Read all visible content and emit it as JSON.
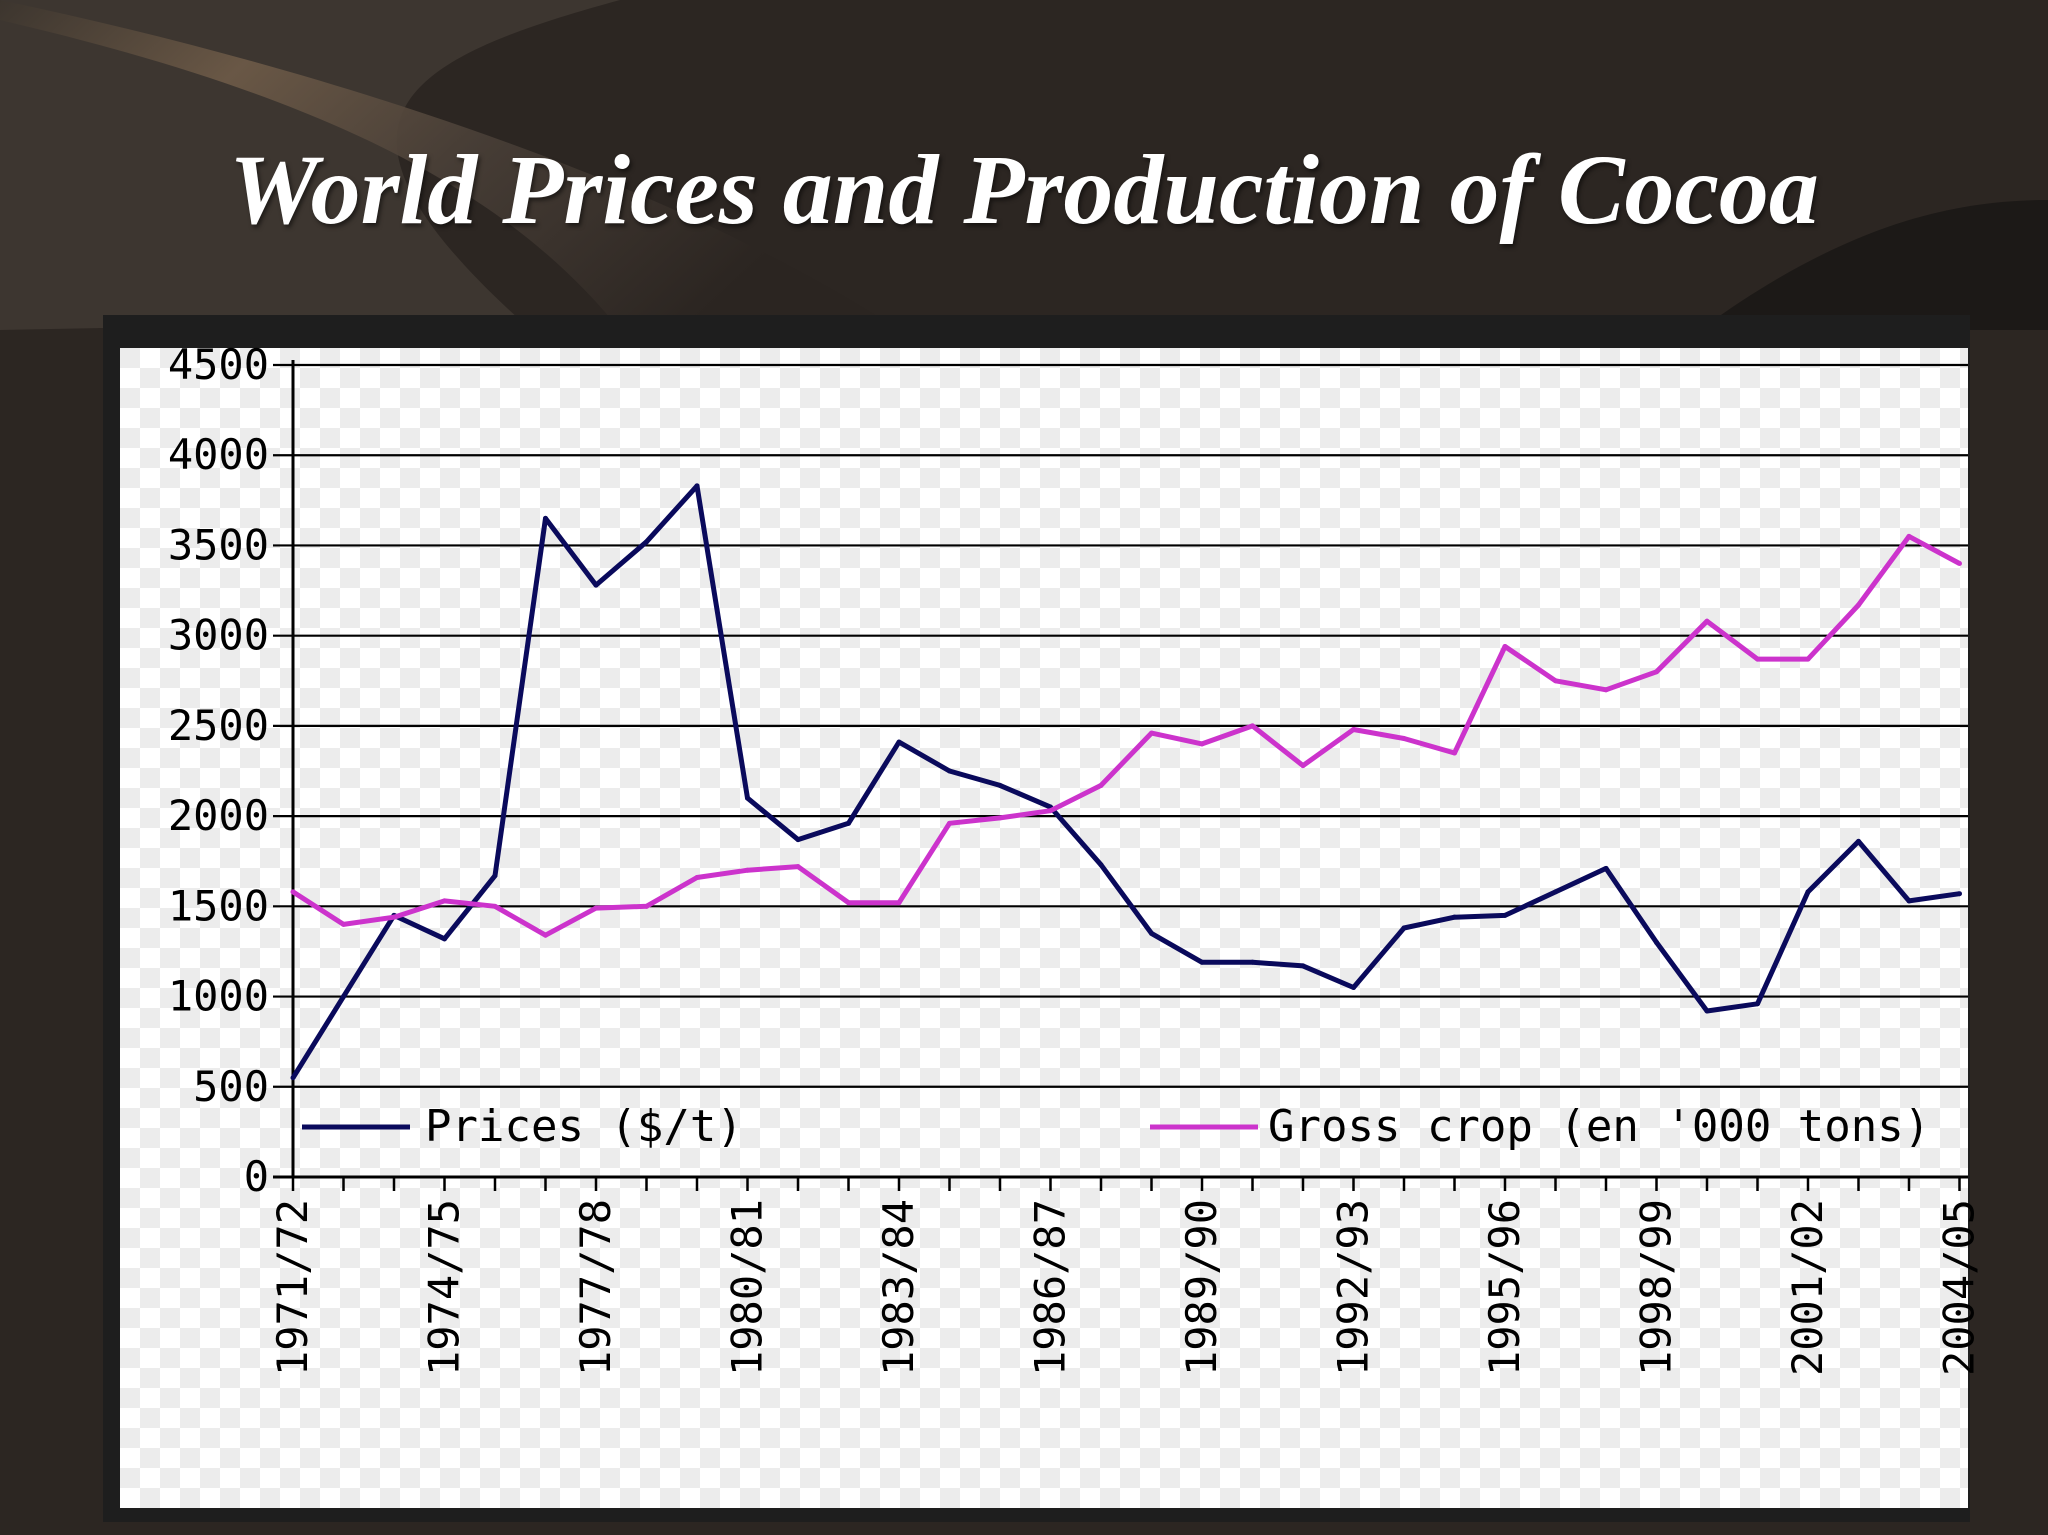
{
  "slide": {
    "title": "World Prices and Production of Cocoa"
  },
  "chart_data": {
    "type": "line",
    "title": "",
    "xlabel": "",
    "ylabel": "",
    "ylim": [
      0,
      4500
    ],
    "yticks": [
      0,
      500,
      1000,
      1500,
      2000,
      2500,
      3000,
      3500,
      4000,
      4500
    ],
    "grid": "horizontal",
    "legend_position": "bottom",
    "x": [
      "1971/72",
      "1972/73",
      "1973/74",
      "1974/75",
      "1975/76",
      "1976/77",
      "1977/78",
      "1978/79",
      "1979/80",
      "1980/81",
      "1981/82",
      "1982/83",
      "1983/84",
      "1984/85",
      "1985/86",
      "1986/87",
      "1987/88",
      "1988/89",
      "1989/90",
      "1990/91",
      "1991/92",
      "1992/93",
      "1993/94",
      "1994/95",
      "1995/96",
      "1996/97",
      "1997/98",
      "1998/99",
      "1999/00",
      "2000/01",
      "2001/02",
      "2002/03",
      "2003/04",
      "2004/05"
    ],
    "xtick_labels": [
      "1971/72",
      "1974/75",
      "1977/78",
      "1980/81",
      "1983/84",
      "1986/87",
      "1989/90",
      "1992/93",
      "1995/96",
      "1998/99",
      "2001/02",
      "2004/05"
    ],
    "series": [
      {
        "name": "Prices ($/t)",
        "color": "#0a0a5c",
        "values": [
          550,
          1000,
          1450,
          1320,
          1670,
          3650,
          3280,
          3520,
          3830,
          2100,
          1870,
          1960,
          2410,
          2250,
          2170,
          2050,
          1730,
          1350,
          1190,
          1190,
          1170,
          1050,
          1380,
          1440,
          1450,
          1580,
          1710,
          1300,
          920,
          960,
          1580,
          1860,
          1530,
          1570
        ]
      },
      {
        "name": "Gross crop (en '000 tons)",
        "color": "#cc33cc",
        "values": [
          1580,
          1400,
          1440,
          1530,
          1500,
          1340,
          1490,
          1500,
          1660,
          1700,
          1720,
          1520,
          1520,
          1960,
          1990,
          2030,
          2170,
          2460,
          2400,
          2500,
          2280,
          2480,
          2430,
          2350,
          2940,
          2750,
          2700,
          2800,
          3080,
          2870,
          2870,
          3170,
          3550,
          3400
        ]
      }
    ]
  }
}
